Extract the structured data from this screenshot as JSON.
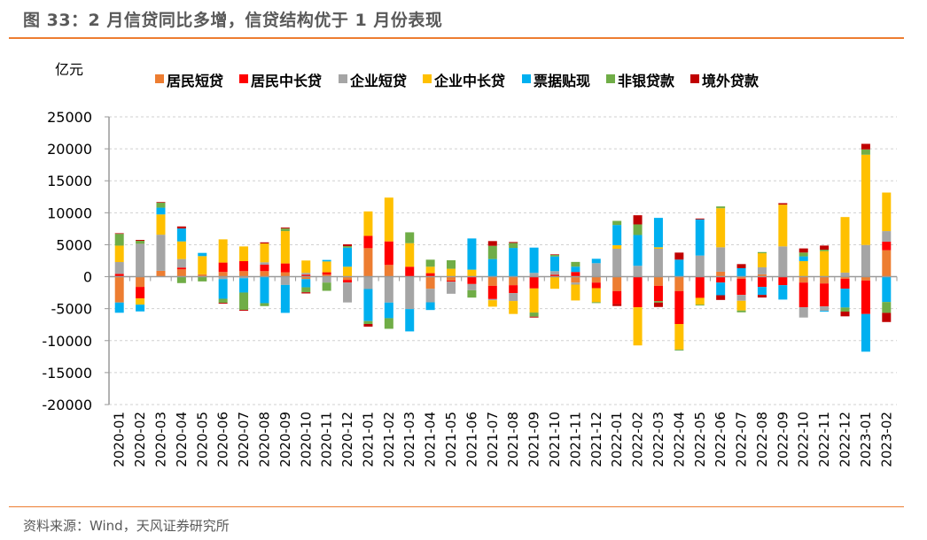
{
  "header": {
    "title": "图 33：2 月信贷同比多增，信贷结构优于 1 月份表现"
  },
  "footer": {
    "source": "资料来源：Wind，天风证券研究所"
  },
  "chart_data": {
    "type": "bar",
    "stacked": true,
    "title": "",
    "unit_label": "亿元",
    "xlabel": "",
    "ylabel": "",
    "ylim": [
      -20000,
      25000
    ],
    "yticks": [
      25000,
      20000,
      15000,
      10000,
      5000,
      0,
      -5000,
      -10000,
      -15000,
      -20000
    ],
    "grid": true,
    "legend_position": "top",
    "categories": [
      "2020-01",
      "2020-02",
      "2020-03",
      "2020-04",
      "2020-05",
      "2020-06",
      "2020-07",
      "2020-08",
      "2020-09",
      "2020-10",
      "2020-11",
      "2020-12",
      "2021-01",
      "2021-02",
      "2021-03",
      "2021-04",
      "2021-05",
      "2021-06",
      "2021-07",
      "2021-08",
      "2021-09",
      "2021-10",
      "2021-11",
      "2021-12",
      "2022-01",
      "2022-02",
      "2022-03",
      "2022-04",
      "2022-05",
      "2022-06",
      "2022-07",
      "2022-08",
      "2022-09",
      "2022-10",
      "2022-11",
      "2022-12",
      "2023-01",
      "2023-02"
    ],
    "series": [
      {
        "name": "居民短贷",
        "color": "#ED7D31",
        "values": [
          -4040,
          -1600,
          920,
          1150,
          370,
          740,
          870,
          870,
          690,
          -370,
          320,
          -500,
          4460,
          1840,
          0,
          -1890,
          -600,
          0,
          -1430,
          -1330,
          0,
          0,
          -920,
          -920,
          -2250,
          0,
          -1430,
          -2250,
          0,
          780,
          -320,
          370,
          0,
          -920,
          -1060,
          -320,
          -600,
          4140
        ]
      },
      {
        "name": "居民中长贷",
        "color": "#FF0000",
        "values": [
          450,
          -1800,
          0,
          280,
          0,
          1470,
          1560,
          1010,
          1380,
          320,
          370,
          -410,
          1930,
          3680,
          1560,
          550,
          -180,
          -1150,
          -2070,
          -1240,
          -1840,
          320,
          740,
          -870,
          -2020,
          -4780,
          -2390,
          -5150,
          -3310,
          -920,
          -2530,
          -1610,
          -1330,
          -3860,
          -3590,
          -1560,
          -5240,
          1330
        ]
      },
      {
        "name": "企业短贷",
        "color": "#A5A5A5",
        "values": [
          1840,
          5150,
          5650,
          1330,
          0,
          -370,
          -230,
          370,
          -1290,
          280,
          -920,
          -3120,
          -1930,
          -4050,
          -5060,
          -2120,
          -1890,
          -970,
          -180,
          -1240,
          600,
          550,
          -320,
          2110,
          4370,
          1700,
          4370,
          0,
          3310,
          3820,
          -920,
          1100,
          4740,
          -1610,
          -690,
          640,
          4960,
          1660
        ]
      },
      {
        "name": "企业中长贷",
        "color": "#FFC000",
        "values": [
          2570,
          -970,
          3170,
          2760,
          2850,
          3630,
          2300,
          2940,
          5060,
          1930,
          1700,
          1560,
          3820,
          6850,
          3680,
          1010,
          1240,
          1100,
          -1010,
          -2020,
          -3770,
          -1890,
          -2480,
          -2200,
          550,
          -5970,
          230,
          -4000,
          -1060,
          6110,
          -1520,
          2200,
          6530,
          2440,
          4000,
          8690,
          14120,
          6030
        ]
      },
      {
        "name": "票据贴现",
        "color": "#00B0F0",
        "values": [
          -1600,
          -1060,
          1060,
          2020,
          500,
          -3080,
          -2250,
          -4140,
          -4370,
          -1290,
          230,
          2990,
          -5010,
          -2440,
          -3500,
          -1200,
          0,
          4880,
          2760,
          4500,
          3950,
          2300,
          830,
          690,
          3170,
          4820,
          4600,
          2670,
          5650,
          -1980,
          1330,
          -1240,
          -2250,
          740,
          -140,
          -2940,
          -5890,
          -3960
        ]
      },
      {
        "name": "非银贷款",
        "color": "#70AD47",
        "values": [
          1840,
          460,
          780,
          -1000,
          -740,
          -640,
          -2710,
          -460,
          410,
          -780,
          -1290,
          230,
          -460,
          -1660,
          1700,
          1100,
          1330,
          -1150,
          2070,
          780,
          -640,
          230,
          740,
          -140,
          640,
          1660,
          -230,
          -140,
          -140,
          280,
          -280,
          180,
          0,
          600,
          230,
          -640,
          830,
          -1700
        ]
      },
      {
        "name": "境外贷款",
        "color": "#C00000",
        "values": [
          100,
          140,
          100,
          320,
          0,
          -140,
          -140,
          180,
          140,
          -180,
          0,
          280,
          -410,
          0,
          0,
          0,
          0,
          0,
          740,
          140,
          -140,
          90,
          0,
          0,
          -320,
          1430,
          -690,
          1100,
          140,
          -740,
          640,
          -410,
          230,
          640,
          640,
          -740,
          870,
          -1430
        ]
      }
    ]
  }
}
